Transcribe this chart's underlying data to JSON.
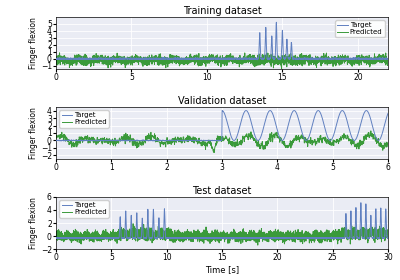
{
  "title_train": "Training dataset",
  "title_val": "Validation dataset",
  "title_test": "Test dataset",
  "xlabel": "Time [s]",
  "ylabel": "Finger flexion",
  "legend_target": "Target",
  "legend_predicted": "Predicted",
  "color_target": "#6080c0",
  "color_predicted": "#3a9a3a",
  "bg_color": "#eaecf4",
  "train_xlim": [
    0,
    22
  ],
  "train_ylim": [
    -1.5,
    6
  ],
  "val_xlim": [
    0,
    6
  ],
  "val_ylim": [
    -2.5,
    4.5
  ],
  "test_xlim": [
    0,
    30
  ],
  "test_ylim": [
    -2,
    6
  ],
  "train_xticks": [
    0,
    5,
    10,
    15,
    20
  ],
  "train_yticks": [
    -1,
    0,
    1,
    2,
    3,
    4,
    5
  ],
  "val_xticks": [
    0,
    1,
    2,
    3,
    4,
    5,
    6
  ],
  "val_yticks": [
    -2,
    -1,
    0,
    1,
    2,
    3,
    4
  ],
  "test_xticks": [
    0,
    5,
    10,
    15,
    20,
    25,
    30
  ],
  "test_yticks": [
    -2,
    0,
    2,
    4,
    6
  ],
  "lw": 0.7,
  "seed": 7
}
